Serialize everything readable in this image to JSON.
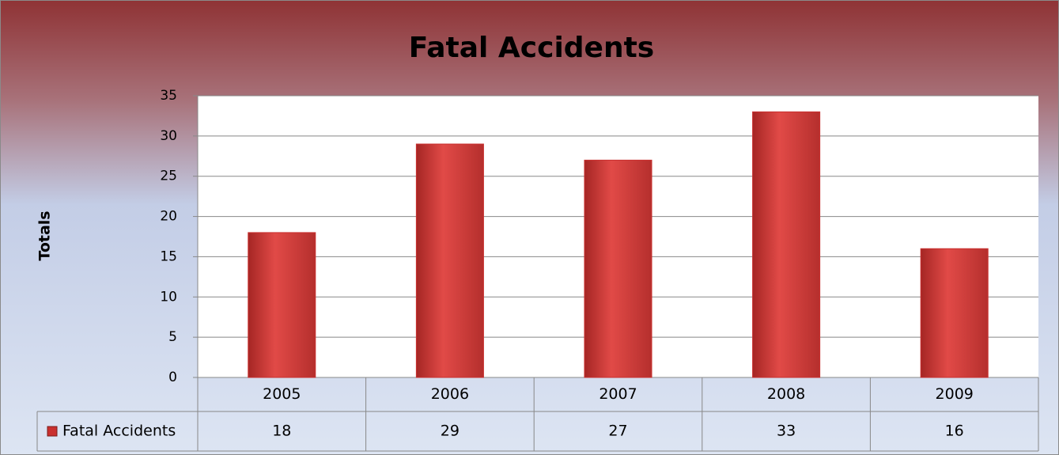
{
  "chart_data": {
    "type": "bar",
    "title": "Fatal Accidents",
    "y_label": "Totals",
    "categories": [
      "2005",
      "2006",
      "2007",
      "2008",
      "2009"
    ],
    "series": [
      {
        "name": "Fatal Accidents",
        "color": "#c9302f",
        "values": [
          18,
          29,
          27,
          33,
          16
        ]
      }
    ],
    "ylim": [
      0,
      35
    ],
    "yticks": [
      0,
      5,
      10,
      15,
      20,
      25,
      30,
      35
    ],
    "grid": true,
    "data_table": true
  }
}
